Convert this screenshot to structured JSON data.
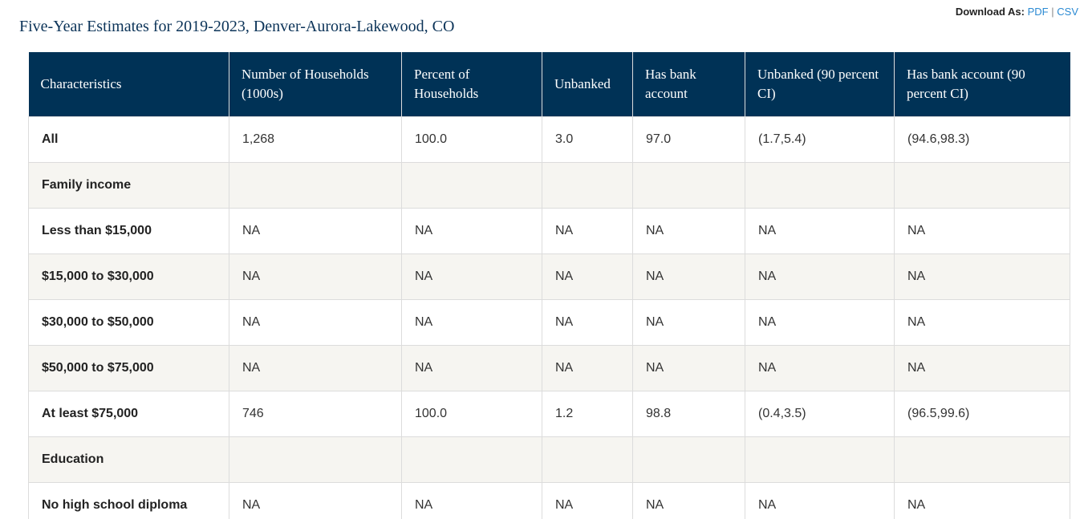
{
  "header": {
    "title": "Five-Year Estimates for 2019-2023, Denver-Aurora-Lakewood, CO",
    "download": {
      "label": "Download As:",
      "links": [
        "PDF",
        "CSV"
      ],
      "separator": "|"
    }
  },
  "table": {
    "columns": [
      "Characteristics",
      "Number of Households (1000s)",
      "Percent of Households",
      "Unbanked",
      "Has bank account",
      "Unbanked (90 percent CI)",
      "Has bank account (90 percent CI)"
    ],
    "rows": [
      [
        "All",
        "1,268",
        "100.0",
        "3.0",
        "97.0",
        "(1.7,5.4)",
        "(94.6,98.3)"
      ],
      [
        "Family income",
        null,
        null,
        null,
        null,
        null,
        null
      ],
      [
        "Less than $15,000",
        "NA",
        "NA",
        "NA",
        "NA",
        "NA",
        "NA"
      ],
      [
        "$15,000 to $30,000",
        "NA",
        "NA",
        "NA",
        "NA",
        "NA",
        "NA"
      ],
      [
        "$30,000 to $50,000",
        "NA",
        "NA",
        "NA",
        "NA",
        "NA",
        "NA"
      ],
      [
        "$50,000 to $75,000",
        "NA",
        "NA",
        "NA",
        "NA",
        "NA",
        "NA"
      ],
      [
        "At least $75,000",
        "746",
        "100.0",
        "1.2",
        "98.8",
        "(0.4,3.5)",
        "(96.5,99.6)"
      ],
      [
        "Education",
        null,
        null,
        null,
        null,
        null,
        null
      ],
      [
        "No high school diploma",
        "NA",
        "NA",
        "NA",
        "NA",
        "NA",
        "NA"
      ]
    ]
  }
}
